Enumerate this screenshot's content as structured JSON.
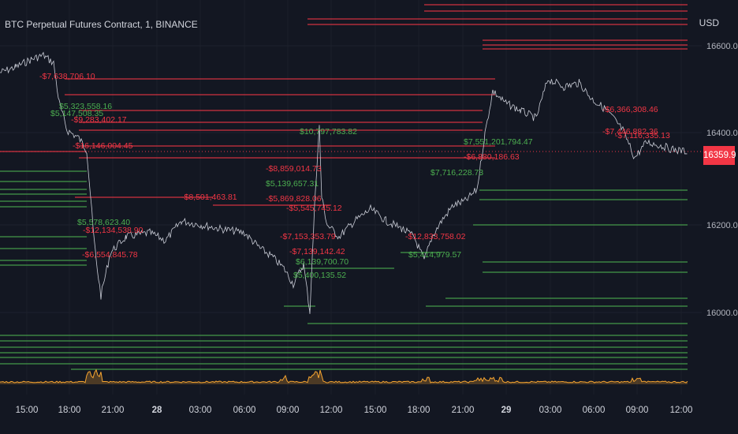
{
  "header": {
    "title": "BTC Perpetual Futures Contract, 1, BINANCE",
    "currency": "USD"
  },
  "price_axis": {
    "ticks": [
      "16600.0",
      "16400.0",
      "16200.0",
      "16000.0"
    ],
    "current_price": "16359.9"
  },
  "time_axis": {
    "labels": [
      "15:00",
      "18:00",
      "21:00",
      "28",
      "03:00",
      "06:00",
      "09:00",
      "12:00",
      "15:00",
      "18:00",
      "21:00",
      "29",
      "03:00",
      "06:00",
      "09:00",
      "12:00"
    ],
    "day_markers": [
      "28",
      "29"
    ]
  },
  "colors": {
    "background": "#131722",
    "red": "#f23645",
    "green": "#4caf50",
    "price_line": "#c9ccd6",
    "volume": "#f7a530"
  },
  "annotations": [
    {
      "text": "-$7,638,706.10",
      "color": "red"
    },
    {
      "text": "$5,323,558.16",
      "color": "green"
    },
    {
      "text": "$5,147,508.35",
      "color": "green"
    },
    {
      "text": "-$9,283,402.17",
      "color": "red"
    },
    {
      "text": "-$16,146,004.45",
      "color": "red"
    },
    {
      "text": "$10,797,783.82",
      "color": "green"
    },
    {
      "text": "-$8,859,014.73",
      "color": "red"
    },
    {
      "text": "$5,139,657.31",
      "color": "green"
    },
    {
      "text": "-$5,869,828.06",
      "color": "red"
    },
    {
      "text": "-$5,545,745.12",
      "color": "red"
    },
    {
      "text": "-$8,501,463.81",
      "color": "red"
    },
    {
      "text": "$5,578,623.40",
      "color": "green"
    },
    {
      "text": "-$12,134,538.90",
      "color": "red"
    },
    {
      "text": "-$6,554,845.78",
      "color": "red"
    },
    {
      "text": "-$7,153,353.79",
      "color": "red"
    },
    {
      "text": "-$7,139,142.42",
      "color": "red"
    },
    {
      "text": "$6,139,700.70",
      "color": "green"
    },
    {
      "text": "$5,400,135.52",
      "color": "green"
    },
    {
      "text": "-$12,833,758.02",
      "color": "red"
    },
    {
      "text": "$5,414,979.57",
      "color": "green"
    },
    {
      "text": "$7,716,228.73",
      "color": "green"
    },
    {
      "text": "$7,551,201,794.47",
      "color": "green"
    },
    {
      "text": "-$6,880,186.63",
      "color": "red"
    },
    {
      "text": "-$6,366,308.46",
      "color": "red"
    },
    {
      "text": "-$7,446,882.36",
      "color": "red"
    },
    {
      "text": "-$7,116,335.13",
      "color": "red"
    }
  ]
}
